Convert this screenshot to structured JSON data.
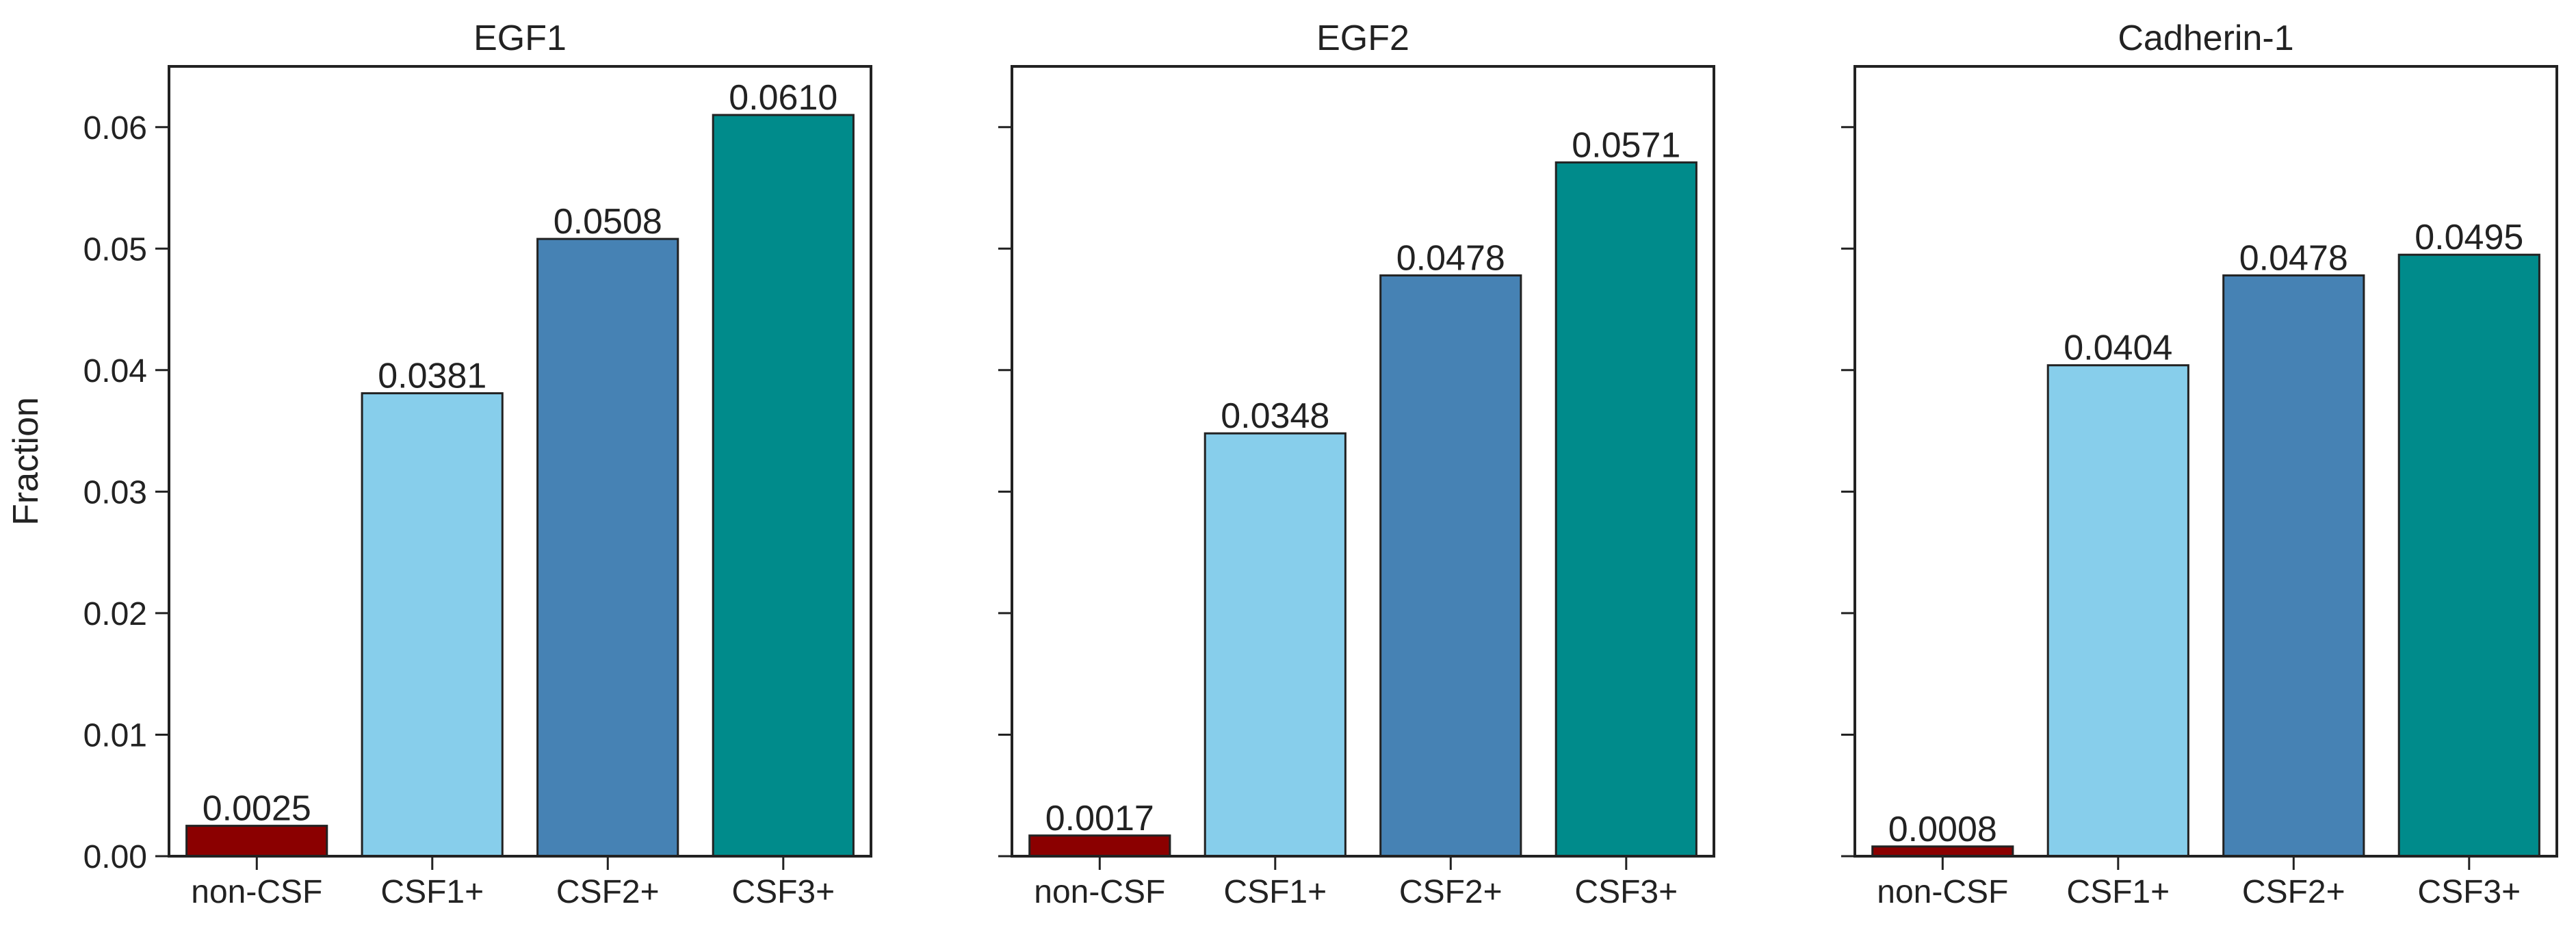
{
  "colors": {
    "non-CSF": "#8b0000",
    "CSF1+": "#87ceeb",
    "CSF2+": "#4682b4",
    "CSF3+": "#008b8b",
    "axis": "#222222",
    "background": "#ffffff"
  },
  "chart_data": [
    {
      "type": "bar",
      "title": "EGF1",
      "ylabel": "Fraction",
      "xlabel": "",
      "categories": [
        "non-CSF",
        "CSF1+",
        "CSF2+",
        "CSF3+"
      ],
      "values": [
        0.0025,
        0.0381,
        0.0508,
        0.061
      ],
      "value_labels": [
        "0.0025",
        "0.0381",
        "0.0508",
        "0.0610"
      ],
      "ylim": [
        0,
        0.065
      ],
      "yticks": [
        0,
        0.01,
        0.02,
        0.03,
        0.04,
        0.05,
        0.06
      ],
      "ytick_labels": [
        "0.00",
        "0.01",
        "0.02",
        "0.03",
        "0.04",
        "0.05",
        "0.06"
      ],
      "grid": false
    },
    {
      "type": "bar",
      "title": "EGF2",
      "ylabel": "",
      "xlabel": "",
      "categories": [
        "non-CSF",
        "CSF1+",
        "CSF2+",
        "CSF3+"
      ],
      "values": [
        0.0017,
        0.0348,
        0.0478,
        0.0571
      ],
      "value_labels": [
        "0.0017",
        "0.0348",
        "0.0478",
        "0.0571"
      ],
      "ylim": [
        0,
        0.065
      ],
      "yticks": [
        0,
        0.01,
        0.02,
        0.03,
        0.04,
        0.05,
        0.06
      ],
      "ytick_labels": [],
      "grid": false
    },
    {
      "type": "bar",
      "title": "Cadherin-1",
      "ylabel": "",
      "xlabel": "",
      "categories": [
        "non-CSF",
        "CSF1+",
        "CSF2+",
        "CSF3+"
      ],
      "values": [
        0.0008,
        0.0404,
        0.0478,
        0.0495
      ],
      "value_labels": [
        "0.0008",
        "0.0404",
        "0.0478",
        "0.0495"
      ],
      "ylim": [
        0,
        0.065
      ],
      "yticks": [
        0,
        0.01,
        0.02,
        0.03,
        0.04,
        0.05,
        0.06
      ],
      "ytick_labels": [],
      "grid": false
    }
  ]
}
